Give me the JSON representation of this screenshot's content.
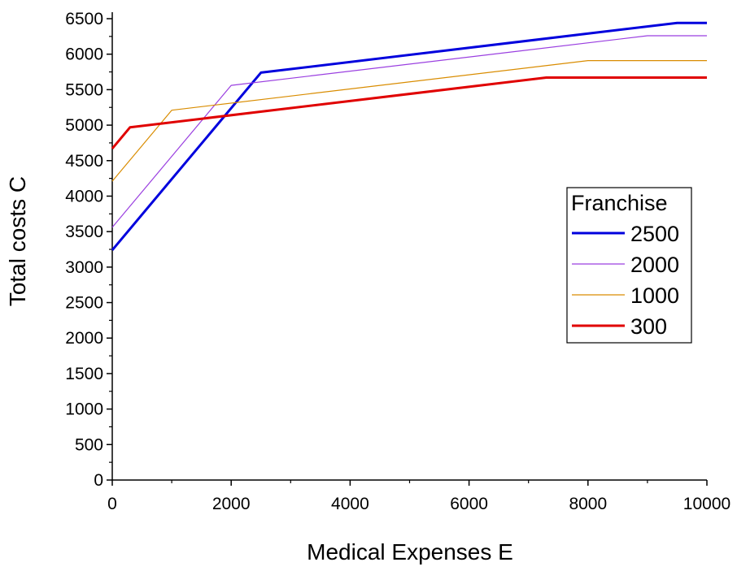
{
  "chart_data": {
    "type": "line",
    "xlabel": "Medical Expenses E",
    "ylabel": "Total costs C",
    "xlim": [
      0,
      10000
    ],
    "ylim": [
      0,
      6500
    ],
    "xticks": [
      0,
      2000,
      4000,
      6000,
      8000,
      10000
    ],
    "yticks": [
      0,
      500,
      1000,
      1500,
      2000,
      2500,
      3000,
      3500,
      4000,
      4500,
      5000,
      5500,
      6000,
      6500
    ],
    "grid": false,
    "legend": {
      "title": "Franchise",
      "placement": "right-middle"
    },
    "series": [
      {
        "name": "2500",
        "color": "#0000dd",
        "line_width": "thick",
        "points": [
          [
            0,
            3240
          ],
          [
            2500,
            5740
          ],
          [
            9500,
            6440
          ],
          [
            10000,
            6440
          ]
        ]
      },
      {
        "name": "2000",
        "color": "#9a3fe0",
        "line_width": "thin",
        "points": [
          [
            0,
            3560
          ],
          [
            2000,
            5560
          ],
          [
            9000,
            6260
          ],
          [
            10000,
            6260
          ]
        ]
      },
      {
        "name": "1000",
        "color": "#d98c00",
        "line_width": "thin",
        "points": [
          [
            0,
            4210
          ],
          [
            1000,
            5210
          ],
          [
            8000,
            5910
          ],
          [
            10000,
            5910
          ]
        ]
      },
      {
        "name": "300",
        "color": "#e00000",
        "line_width": "thick",
        "points": [
          [
            0,
            4670
          ],
          [
            300,
            4970
          ],
          [
            7300,
            5670
          ],
          [
            10000,
            5670
          ]
        ]
      }
    ]
  }
}
